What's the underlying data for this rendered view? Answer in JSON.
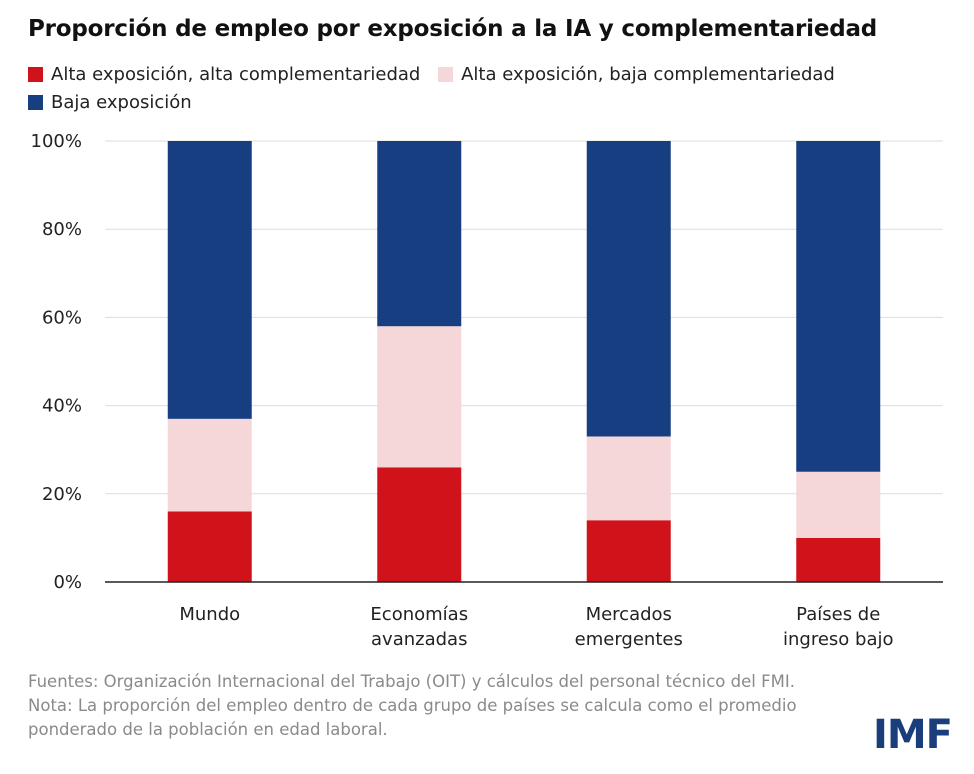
{
  "title": "Proporción de empleo por exposición a la IA y complementariedad",
  "colors": {
    "high_high": "#d0121b",
    "high_low": "#f6d7d9",
    "low": "#163e80",
    "grid": "#dddddd",
    "axis": "#222222",
    "logo": "#1a3d7c"
  },
  "chart_data": {
    "type": "bar",
    "stacked": true,
    "categories": [
      "Mundo",
      "Economías avanzadas",
      "Mercados emergentes",
      "Países de ingreso bajo"
    ],
    "category_lines": [
      [
        "Mundo"
      ],
      [
        "Economías",
        "avanzadas"
      ],
      [
        "Mercados",
        "emergentes"
      ],
      [
        "Países de",
        "ingreso bajo"
      ]
    ],
    "series": [
      {
        "name": "Alta exposición, alta complementariedad",
        "color": "#d0121b",
        "values": [
          16,
          26,
          14,
          10
        ]
      },
      {
        "name": "Alta exposición, baja complementariedad",
        "color": "#f6d7d9",
        "values": [
          21,
          32,
          19,
          15
        ]
      },
      {
        "name": "Baja exposición",
        "color": "#163e80",
        "values": [
          63,
          42,
          67,
          75
        ]
      }
    ],
    "ylim": [
      0,
      100
    ],
    "yticks": [
      0,
      20,
      40,
      60,
      80,
      100
    ],
    "ytick_labels": [
      "0%",
      "20%",
      "40%",
      "60%",
      "80%",
      "100%"
    ],
    "grid": true,
    "legend_position": "top-left"
  },
  "notes": {
    "source": "Fuentes: Organización Internacional del Trabajo (OIT) y cálculos del personal técnico del FMI.",
    "note": "Nota: La proporción del empleo dentro de cada grupo de países se calcula como el promedio ponderado de la población en edad laboral."
  },
  "logo": "IMF"
}
